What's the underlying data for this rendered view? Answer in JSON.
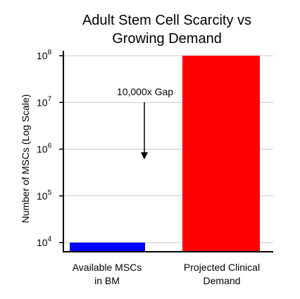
{
  "chart_data": {
    "type": "bar",
    "title_lines": [
      "Adult Stem Cell Scarcity vs",
      "Growing Demand"
    ],
    "ylabel": "Number of MSCs (Log Scale)",
    "xlabel": "",
    "y_scale": "log",
    "ylim": [
      8000,
      100000000
    ],
    "grid": true,
    "yticks": [
      {
        "value": 10000,
        "base": "10",
        "exp": "4"
      },
      {
        "value": 100000,
        "base": "10",
        "exp": "5"
      },
      {
        "value": 1000000,
        "base": "10",
        "exp": "6"
      },
      {
        "value": 10000000,
        "base": "10",
        "exp": "7"
      },
      {
        "value": 100000000,
        "base": "10",
        "exp": "8"
      }
    ],
    "categories": [
      {
        "lines": [
          "Available MSCs",
          "in BM"
        ]
      },
      {
        "lines": [
          "Projected Clinical",
          "Demand"
        ]
      }
    ],
    "values": [
      10000,
      100000000
    ],
    "colors": [
      "#0000ff",
      "#ff0000"
    ],
    "annotation": {
      "text": "10,000x Gap",
      "arrow": "down"
    }
  }
}
